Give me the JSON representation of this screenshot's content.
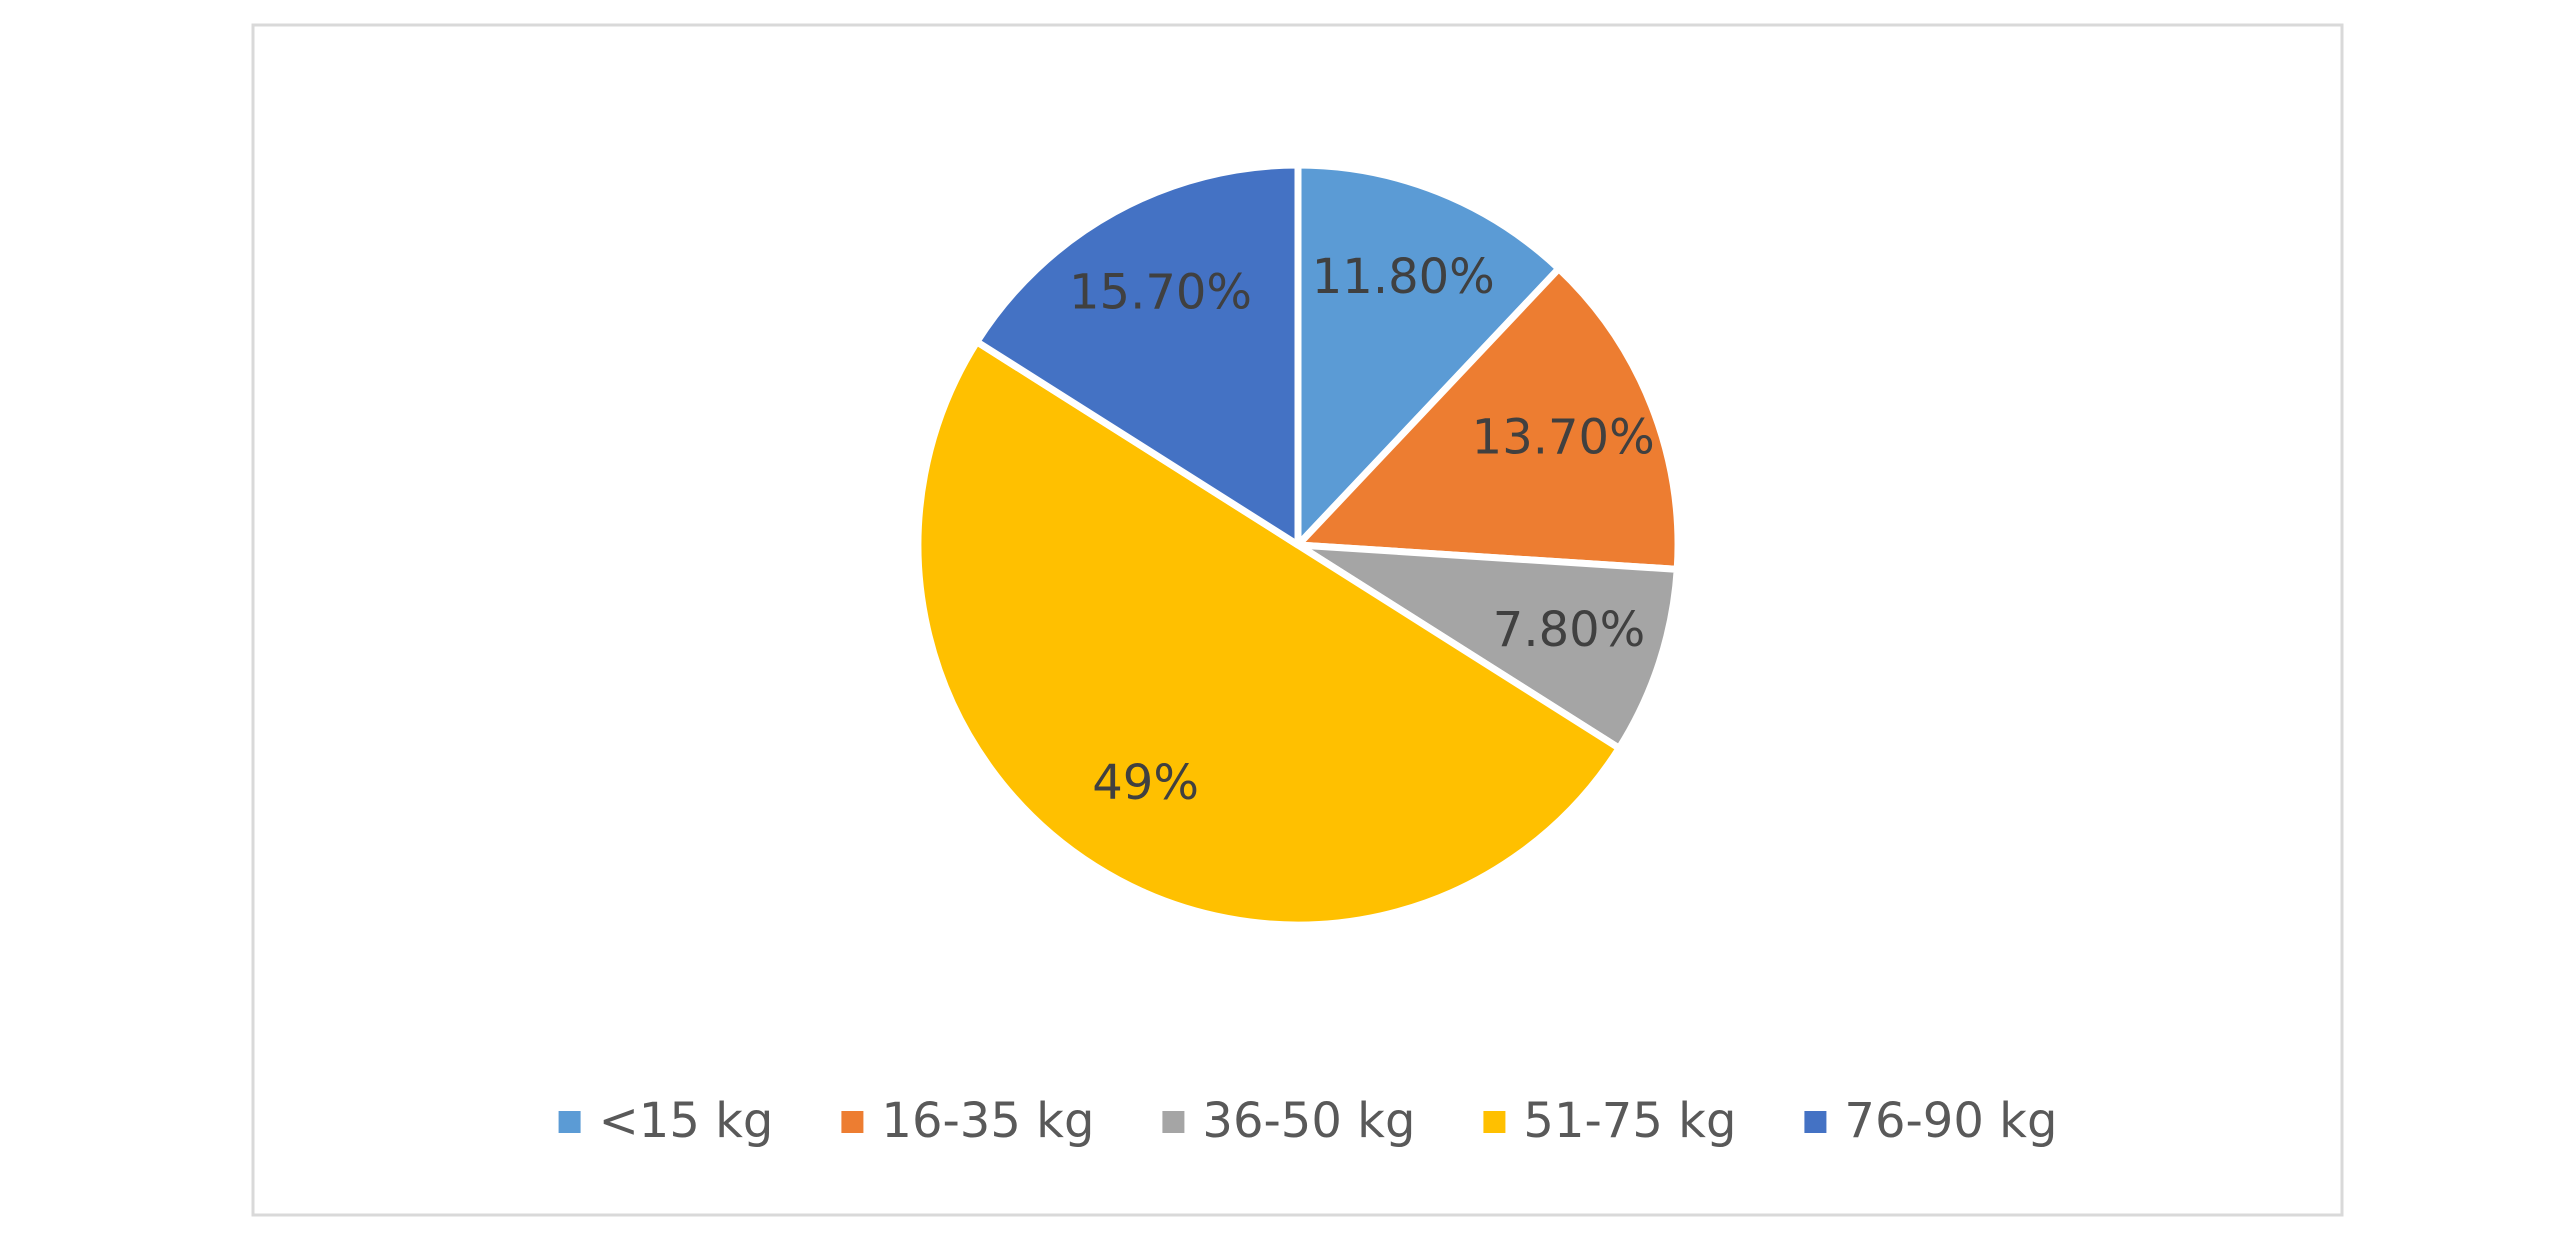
{
  "chart_data": {
    "type": "pie",
    "categories": [
      "<15 kg",
      "16-35 kg",
      "36-50 kg",
      "51-75 kg",
      "76-90 kg"
    ],
    "values": [
      11.8,
      13.7,
      7.8,
      49,
      15.7
    ],
    "value_labels": [
      "11.80%",
      "13.70%",
      "7.80%",
      "49%",
      "15.70%"
    ],
    "colors": [
      "#5b9bd5",
      "#ed7d31",
      "#a5a5a5",
      "#ffc000",
      "#4472c4"
    ],
    "legend": "bottom"
  }
}
